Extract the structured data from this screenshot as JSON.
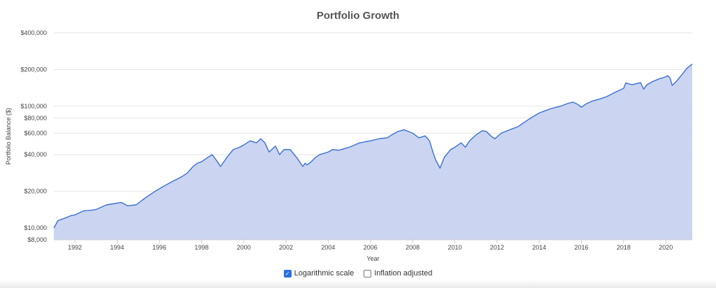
{
  "chart_data": {
    "type": "area",
    "title": "Portfolio Growth",
    "xlabel": "Year",
    "ylabel": "Portfolio Balance ($)",
    "y_scale": "log",
    "ylim": [
      8000,
      400000
    ],
    "xlim": [
      1991.0,
      2021.25
    ],
    "y_ticks": [
      8000,
      10000,
      20000,
      40000,
      60000,
      80000,
      100000,
      200000,
      400000
    ],
    "y_tick_labels": [
      "$8,000",
      "$10,000",
      "$20,000",
      "$40,000",
      "$60,000",
      "$80,000",
      "$100,000",
      "$200,000",
      "$400,000"
    ],
    "x_ticks": [
      1992,
      1994,
      1996,
      1998,
      2000,
      2002,
      2004,
      2006,
      2008,
      2010,
      2012,
      2014,
      2016,
      2018,
      2020
    ],
    "x_tick_labels": [
      "1992",
      "1994",
      "1996",
      "1998",
      "2000",
      "2002",
      "2004",
      "2006",
      "2008",
      "2010",
      "2012",
      "2014",
      "2016",
      "2018",
      "2020"
    ],
    "grid": true,
    "colors": {
      "line": "#3a6fd8",
      "fill": "#c5d0f0"
    },
    "series": [
      {
        "x": [
          1991.0,
          1991.2,
          1991.5,
          1991.8,
          1992.0,
          1992.4,
          1992.8,
          1993.0,
          1993.5,
          1994.0,
          1994.2,
          1994.5,
          1994.9,
          1995.2,
          1995.5,
          1995.8,
          1996.0,
          1996.3,
          1996.5,
          1996.8,
          1997.0,
          1997.3,
          1997.6,
          1997.8,
          1998.0,
          1998.3,
          1998.5,
          1998.7,
          1998.9,
          1999.2,
          1999.5,
          1999.8,
          2000.0,
          2000.3,
          2000.6,
          2000.8,
          2001.0,
          2001.2,
          2001.5,
          2001.7,
          2001.9,
          2002.2,
          2002.5,
          2002.8,
          2002.9,
          2003.0,
          2003.2,
          2003.4,
          2003.6,
          2004.0,
          2004.2,
          2004.5,
          2005.0,
          2005.5,
          2006.0,
          2006.4,
          2006.8,
          2007.0,
          2007.3,
          2007.6,
          2007.8,
          2008.0,
          2008.3,
          2008.6,
          2008.8,
          2009.0,
          2009.1,
          2009.3,
          2009.5,
          2009.8,
          2010.0,
          2010.3,
          2010.5,
          2010.7,
          2011.0,
          2011.3,
          2011.5,
          2011.7,
          2011.9,
          2012.2,
          2012.5,
          2012.8,
          2013.0,
          2013.3,
          2013.6,
          2014.0,
          2014.3,
          2014.6,
          2015.0,
          2015.4,
          2015.6,
          2015.8,
          2016.0,
          2016.2,
          2016.5,
          2016.9,
          2017.2,
          2017.6,
          2018.0,
          2018.1,
          2018.4,
          2018.8,
          2018.95,
          2019.1,
          2019.4,
          2019.7,
          2019.9,
          2020.1,
          2020.2,
          2020.3,
          2020.5,
          2020.8,
          2021.0,
          2021.25
        ],
        "values": [
          10000,
          11500,
          12000,
          12600,
          12800,
          13800,
          14000,
          14200,
          15500,
          16000,
          16200,
          15200,
          15500,
          17000,
          18500,
          20000,
          21000,
          22500,
          23500,
          25000,
          26000,
          28000,
          32000,
          34000,
          35000,
          38000,
          40000,
          36000,
          32000,
          38000,
          44000,
          46000,
          48000,
          52000,
          50000,
          54000,
          50000,
          42000,
          47000,
          40000,
          44000,
          44000,
          38000,
          32000,
          34000,
          33000,
          35000,
          38000,
          40000,
          42000,
          44000,
          43500,
          46000,
          50000,
          52000,
          54000,
          55000,
          58000,
          62000,
          64000,
          62000,
          60000,
          55000,
          57000,
          52000,
          40000,
          36000,
          31000,
          38000,
          44000,
          46000,
          50000,
          46000,
          52000,
          58000,
          63000,
          62000,
          57000,
          54000,
          60000,
          63000,
          66000,
          68000,
          74000,
          80000,
          88000,
          92000,
          96000,
          100000,
          106000,
          108000,
          104000,
          98000,
          104000,
          110000,
          115000,
          120000,
          130000,
          140000,
          155000,
          150000,
          156000,
          138000,
          150000,
          160000,
          168000,
          172000,
          178000,
          170000,
          148000,
          160000,
          185000,
          205000,
          222000
        ]
      }
    ]
  },
  "controls": {
    "log_scale_label": "Logarithmic scale",
    "inflation_label": "Inflation adjusted",
    "log_scale_checked": true,
    "inflation_checked": false
  }
}
